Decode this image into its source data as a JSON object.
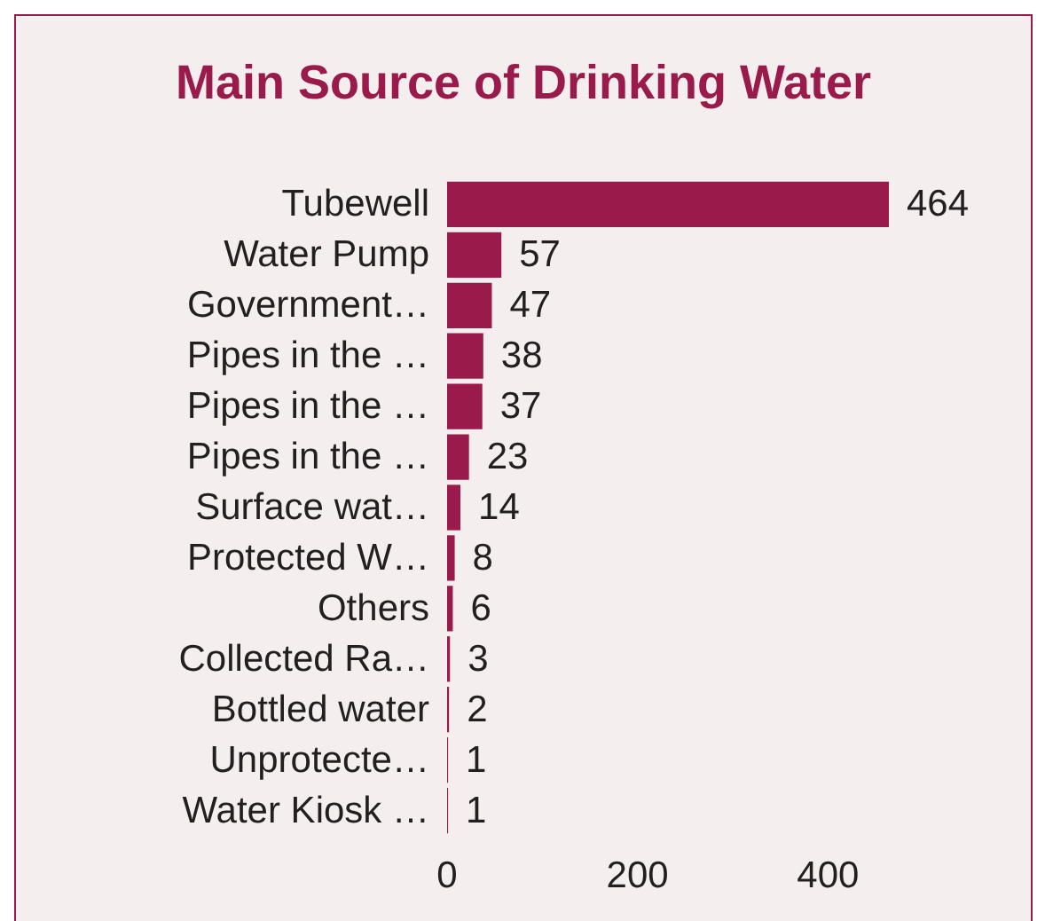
{
  "chart_data": {
    "type": "bar",
    "orientation": "horizontal",
    "title": "Main Source of Drinking Water",
    "categories": [
      "Tubewell",
      "Water Pump",
      "Government…",
      "Pipes in the …",
      "Pipes in the …",
      "Pipes in the …",
      "Surface wat…",
      "Protected W…",
      "Others",
      "Collected Ra…",
      "Bottled water",
      "Unprotecte…",
      "Water Kiosk …"
    ],
    "values": [
      464,
      57,
      47,
      38,
      37,
      23,
      14,
      8,
      6,
      3,
      2,
      1,
      1
    ],
    "color": "#9a1a4b",
    "xlim": [
      0,
      464
    ],
    "xticks": [
      0,
      200,
      400
    ],
    "data_labels": true
  }
}
